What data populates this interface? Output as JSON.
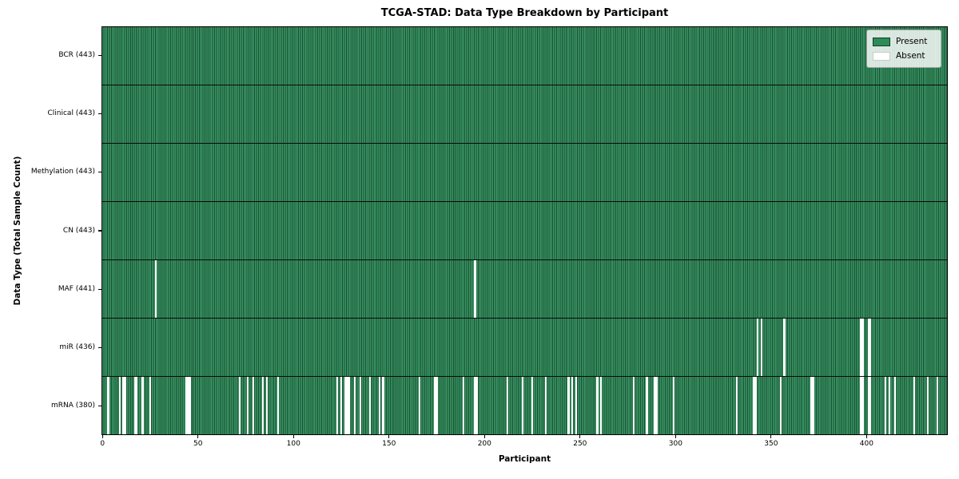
{
  "title": "TCGA-STAD: Data Type Breakdown by Participant",
  "legend": {
    "present": "Present",
    "absent": "Absent"
  },
  "colors": {
    "present": "#2e8b57",
    "present_edge": "#16502f",
    "absent": "#ffffff",
    "axis": "#000000",
    "legend_border": "#a8aba8"
  },
  "chart_data": {
    "type": "heatmap",
    "title": "TCGA-STAD: Data Type Breakdown by Participant",
    "xlabel": "Participant",
    "ylabel": "Data Type (Total Sample Count)",
    "legend_entries": [
      "Present",
      "Absent"
    ],
    "legend_position": "upper right",
    "n_participants": 443,
    "xlim": [
      -0.5,
      442.5
    ],
    "x_ticks": [
      0,
      50,
      100,
      150,
      200,
      250,
      300,
      350,
      400
    ],
    "grid": false,
    "rows": [
      {
        "label": "BCR (443)",
        "data_type": "BCR",
        "total": 443,
        "absent": []
      },
      {
        "label": "Clinical (443)",
        "data_type": "Clinical",
        "total": 443,
        "absent": []
      },
      {
        "label": "Methylation (443)",
        "data_type": "Methylation",
        "total": 443,
        "absent": []
      },
      {
        "label": "CN (443)",
        "data_type": "CN",
        "total": 443,
        "absent": []
      },
      {
        "label": "MAF (441)",
        "data_type": "MAF",
        "total": 441,
        "absent": [
          28,
          195
        ]
      },
      {
        "label": "miR (436)",
        "data_type": "miR",
        "total": 436,
        "absent": [
          343,
          345,
          357,
          397,
          398,
          401,
          402
        ]
      },
      {
        "label": "mRNA (380)",
        "data_type": "mRNA",
        "total": 380,
        "absent": [
          3,
          9,
          11,
          12,
          17,
          18,
          21,
          25,
          44,
          45,
          46,
          72,
          76,
          79,
          84,
          86,
          92,
          123,
          125,
          127,
          128,
          129,
          132,
          135,
          140,
          145,
          147,
          166,
          174,
          175,
          189,
          195,
          196,
          212,
          220,
          225,
          232,
          244,
          246,
          248,
          259,
          261,
          278,
          285,
          289,
          290,
          299,
          332,
          341,
          342,
          355,
          371,
          372,
          397,
          398,
          401,
          402,
          410,
          412,
          415,
          425,
          432,
          437
        ]
      }
    ]
  }
}
